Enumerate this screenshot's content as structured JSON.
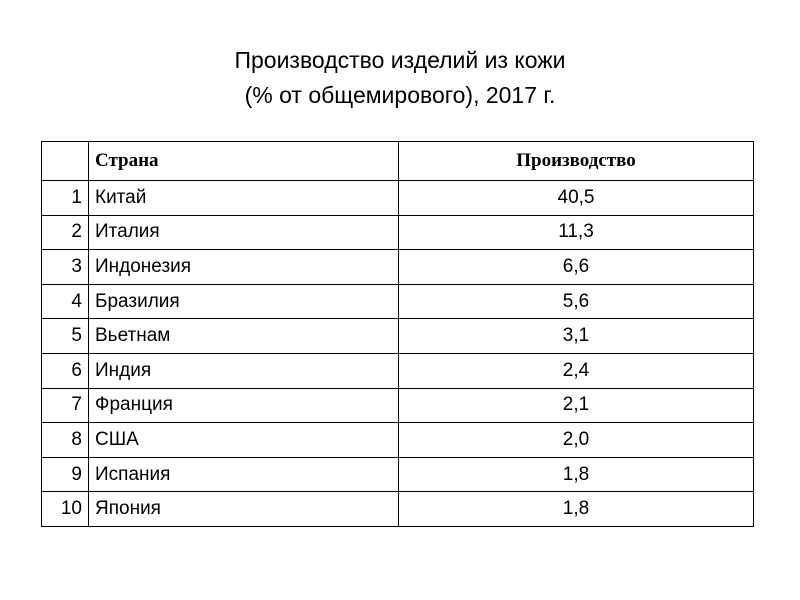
{
  "header": {
    "title": [
      "Производство изделий из кожи",
      "(% от общемирового), 2017 г."
    ]
  },
  "table": {
    "columns": [
      "",
      "Страна",
      "Производство"
    ],
    "rows": [
      [
        "1",
        "Китай",
        "40,5"
      ],
      [
        "2",
        "Италия",
        "11,3"
      ],
      [
        "3",
        "Индонезия",
        "6,6"
      ],
      [
        "4",
        "Бразилия",
        "5,6"
      ],
      [
        "5",
        "Вьетнам",
        "3,1"
      ],
      [
        "6",
        "Индия",
        "2,4"
      ],
      [
        "7",
        "Франция",
        "2,1"
      ],
      [
        "8",
        "США",
        "2,0"
      ],
      [
        "9",
        "Испания",
        "1,8"
      ],
      [
        "10",
        "Япония",
        "1,8"
      ]
    ]
  }
}
